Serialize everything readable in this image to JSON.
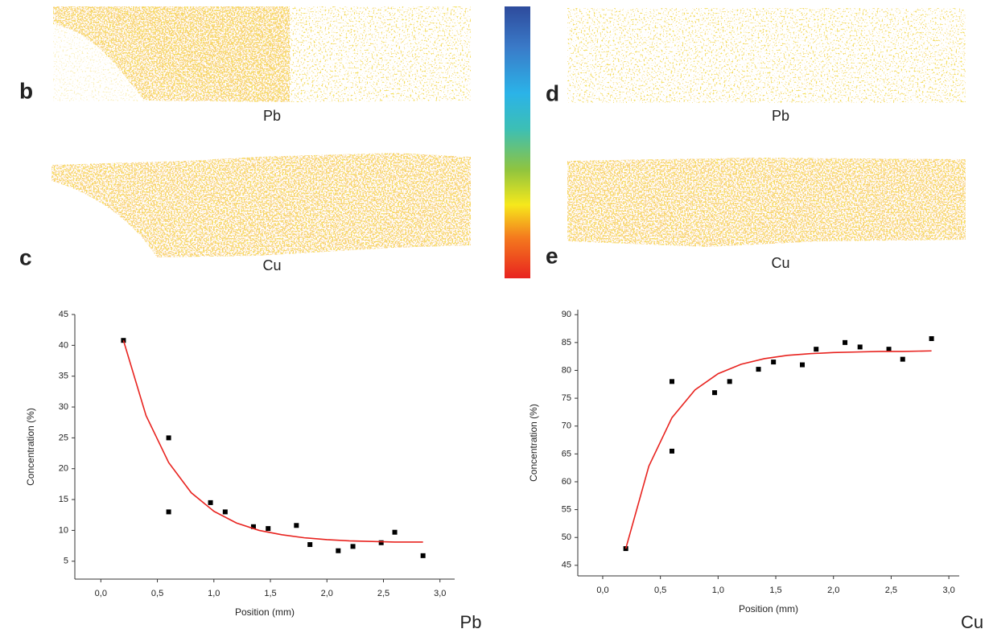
{
  "panels": {
    "b": "b",
    "c": "c",
    "d": "d",
    "e": "e",
    "map_b": "Pb",
    "map_c": "Cu",
    "map_d": "Pb",
    "map_e": "Cu"
  },
  "chart_data": [
    {
      "type": "scatter",
      "x_label": "Position (mm)",
      "y_label": "Concentration (%)",
      "annotation": "Pb",
      "xlim": [
        -0.23,
        3.13
      ],
      "ylim": [
        2.1,
        45
      ],
      "xticks": [
        {
          "value": 0,
          "label": "0,0"
        },
        {
          "value": 0.5,
          "label": "0,5"
        },
        {
          "value": 1,
          "label": "1,0"
        },
        {
          "value": 1.5,
          "label": "1,5"
        },
        {
          "value": 2,
          "label": "2,0"
        },
        {
          "value": 2.5,
          "label": "2,5"
        },
        {
          "value": 3,
          "label": "3,0"
        }
      ],
      "yticks": [
        5,
        10,
        15,
        20,
        25,
        30,
        35,
        40,
        45
      ],
      "series": [
        {
          "style": "markers",
          "color": "#000000",
          "x": [
            0.2,
            0.6,
            0.6,
            0.97,
            1.1,
            1.35,
            1.48,
            1.73,
            1.85,
            2.1,
            2.23,
            2.48,
            2.6,
            2.85
          ],
          "values": [
            40.8,
            25,
            13,
            14.5,
            13,
            10.6,
            10.3,
            10.8,
            7.7,
            6.7,
            7.4,
            8,
            9.7,
            5.9
          ]
        },
        {
          "style": "line",
          "color": "#e8231f",
          "x": [
            0.2,
            0.4,
            0.6,
            0.8,
            1.0,
            1.2,
            1.4,
            1.6,
            1.8,
            2.0,
            2.2,
            2.4,
            2.6,
            2.85
          ],
          "values": [
            40.8,
            28.6,
            21.0,
            16.1,
            13.1,
            11.2,
            10.0,
            9.3,
            8.8,
            8.5,
            8.3,
            8.2,
            8.1,
            8.1
          ]
        }
      ]
    },
    {
      "type": "scatter",
      "x_label": "Position (mm)",
      "y_label": "Concentration (%)",
      "annotation": "Cu",
      "xlim": [
        -0.216,
        3.09
      ],
      "ylim": [
        43.1,
        90.9
      ],
      "xticks": [
        {
          "value": 0,
          "label": "0,0"
        },
        {
          "value": 0.5,
          "label": "0,5"
        },
        {
          "value": 1,
          "label": "1,0"
        },
        {
          "value": 1.5,
          "label": "1,5"
        },
        {
          "value": 2,
          "label": "2,0"
        },
        {
          "value": 2.5,
          "label": "2,5"
        },
        {
          "value": 3,
          "label": "3,0"
        }
      ],
      "yticks": [
        45,
        50,
        55,
        60,
        65,
        70,
        75,
        80,
        85,
        90
      ],
      "series": [
        {
          "style": "markers",
          "color": "#000000",
          "x": [
            0.2,
            0.6,
            0.6,
            0.97,
            1.1,
            1.35,
            1.48,
            1.73,
            1.85,
            2.1,
            2.23,
            2.48,
            2.6,
            2.85
          ],
          "values": [
            48,
            78,
            65.5,
            76,
            78,
            80.2,
            81.5,
            81,
            83.8,
            85,
            84.2,
            83.8,
            82,
            85.7
          ]
        },
        {
          "style": "line",
          "color": "#e8231f",
          "x": [
            0.2,
            0.4,
            0.6,
            0.8,
            1.0,
            1.2,
            1.4,
            1.6,
            1.8,
            2.0,
            2.2,
            2.4,
            2.6,
            2.85
          ],
          "values": [
            48,
            62.8,
            71.5,
            76.5,
            79.4,
            81.1,
            82.1,
            82.7,
            83.0,
            83.2,
            83.3,
            83.4,
            83.4,
            83.5
          ]
        }
      ]
    }
  ]
}
